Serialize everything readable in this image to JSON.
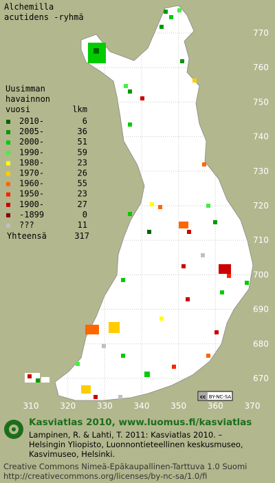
{
  "title": [
    "Alchemilla",
    "acutidens -ryhmä"
  ],
  "legend": {
    "heading": [
      "Uusimman",
      "havainnon",
      "vuosi"
    ],
    "count_heading": "lkm",
    "entries": [
      {
        "label": "2010-",
        "count": 6,
        "color": "#006400"
      },
      {
        "label": "2005-",
        "count": 36,
        "color": "#009a00"
      },
      {
        "label": "2000-",
        "count": 51,
        "color": "#00cc00"
      },
      {
        "label": "1990-",
        "count": 59,
        "color": "#44ee44"
      },
      {
        "label": "1980-",
        "count": 23,
        "color": "#ffff00"
      },
      {
        "label": "1970-",
        "count": 26,
        "color": "#ffcc00"
      },
      {
        "label": "1960-",
        "count": 55,
        "color": "#ff6600"
      },
      {
        "label": "1950-",
        "count": 23,
        "color": "#ff2200"
      },
      {
        "label": "1900-",
        "count": 27,
        "color": "#cc0000"
      },
      {
        "label": "-1899",
        "count": 0,
        "color": "#880000"
      },
      {
        "label": "???",
        "count": 11,
        "color": "#c0c0c0"
      }
    ],
    "total_label": "Yhteensä",
    "total": 317
  },
  "grid": {
    "y_labels": [
      770,
      760,
      750,
      740,
      730,
      720,
      710,
      700,
      690,
      680,
      670
    ],
    "x_labels": [
      310,
      320,
      330,
      340,
      350,
      360,
      370
    ]
  },
  "badge": "BY-NC-SA",
  "footer": {
    "heading": "Kasviatlas 2010, www.luomus.fi/kasviatlas",
    "citation": [
      "Lampinen, R. & Lahti, T. 2011: Kasviatlas 2010. –",
      "Helsingin Yliopisto, Luonnontieteellinen keskusmuseo,",
      "Kasvimuseo, Helsinki."
    ],
    "license": [
      "Creative Commons Nimeä-Epäkaupallinen-Tarttuva 1.0 Suomi",
      "http://creativecommons.org/licenses/by-nc-sa/1.0/fi"
    ]
  }
}
